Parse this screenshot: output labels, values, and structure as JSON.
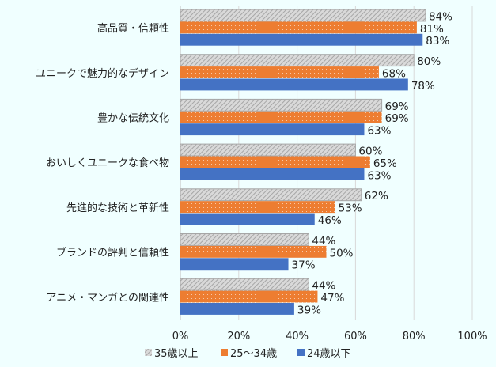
{
  "chart_data": {
    "type": "bar",
    "orientation": "horizontal",
    "categories": [
      "高品質・信頼性",
      "ユニークで魅力的なデザイン",
      "豊かな伝統文化",
      "おいしくユニークな食べ物",
      "先進的な技術と革新性",
      "ブランドの評判と信頼性",
      "アニメ・マンガとの関連性"
    ],
    "series": [
      {
        "name": "35歳以上",
        "values": [
          84,
          80,
          69,
          60,
          62,
          44,
          44
        ],
        "color": "#a6a6a6",
        "pattern": "diagonal-hatch"
      },
      {
        "name": "25～34歳",
        "values": [
          81,
          68,
          69,
          65,
          53,
          50,
          47
        ],
        "color": "#ed7d31",
        "pattern": "dots"
      },
      {
        "name": "24歳以下",
        "values": [
          83,
          78,
          63,
          63,
          46,
          37,
          39
        ],
        "color": "#4472c4",
        "pattern": "solid"
      }
    ],
    "xlim": [
      0,
      100
    ],
    "xticks": [
      "0%",
      "20%",
      "40%",
      "60%",
      "80%",
      "100%"
    ],
    "value_suffix": "%",
    "grid": true,
    "legend": "bottom"
  }
}
